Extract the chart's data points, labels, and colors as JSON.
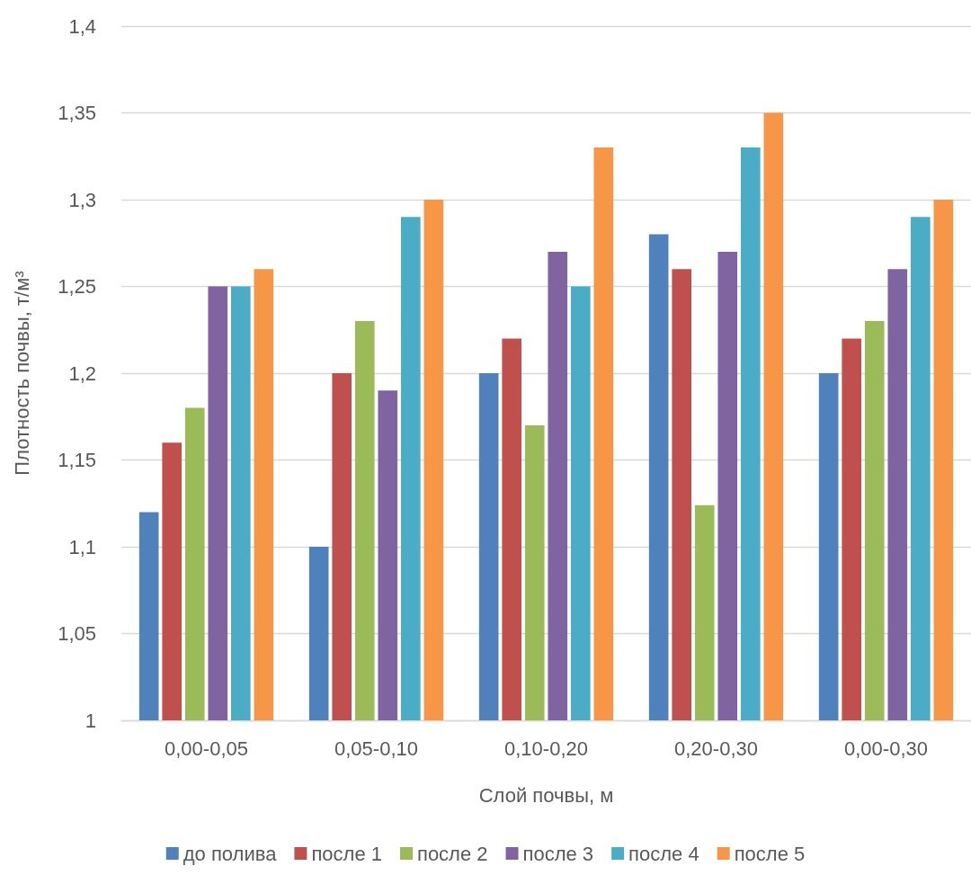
{
  "chart_data": {
    "type": "bar",
    "xlabel": "Слой почвы, м",
    "ylabel": "Плотность почвы, т/м³",
    "categories": [
      "0,00-0,05",
      "0,05-0,10",
      "0,10-0,20",
      "0,20-0,30",
      "0,00-0,30"
    ],
    "series": [
      {
        "name": "до полива",
        "color": "#4f81bd",
        "values": [
          1.12,
          1.1,
          1.2,
          1.28,
          1.2
        ]
      },
      {
        "name": "после 1",
        "color": "#c0504d",
        "values": [
          1.16,
          1.2,
          1.22,
          1.26,
          1.22
        ]
      },
      {
        "name": "после 2",
        "color": "#9bbb59",
        "values": [
          1.18,
          1.23,
          1.17,
          1.124,
          1.23
        ]
      },
      {
        "name": "после 3",
        "color": "#8064a2",
        "values": [
          1.25,
          1.19,
          1.27,
          1.27,
          1.26
        ]
      },
      {
        "name": "после 4",
        "color": "#4bacc6",
        "values": [
          1.25,
          1.29,
          1.25,
          1.33,
          1.29
        ]
      },
      {
        "name": "после 5",
        "color": "#f79646",
        "values": [
          1.26,
          1.3,
          1.33,
          1.35,
          1.3
        ]
      }
    ],
    "ylim": [
      1,
      1.4
    ],
    "yticks": [
      1,
      {
        "value": 1.05,
        "label": "1,05"
      },
      {
        "value": 1.1,
        "label": "1,1"
      },
      {
        "value": 1.15,
        "label": "1,15"
      },
      {
        "value": 1.2,
        "label": "1,2"
      },
      {
        "value": 1.25,
        "label": "1,25"
      },
      {
        "value": 1.3,
        "label": "1,3"
      },
      {
        "value": 1.35,
        "label": "1,35"
      },
      {
        "value": 1.4,
        "label": "1,4"
      }
    ],
    "grid": "y",
    "legend": "bottom"
  }
}
